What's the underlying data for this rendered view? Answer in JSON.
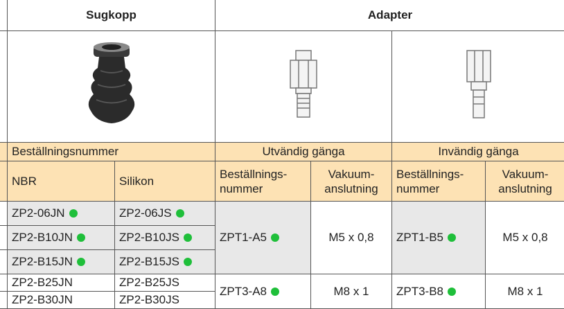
{
  "header": {
    "sugkopp": "Sugkopp",
    "adapter": "Adapter"
  },
  "subheader": {
    "order_number": "Beställningsnummer",
    "external": "Utvändig gänga",
    "internal": "Invändig gänga"
  },
  "columns": {
    "nbr": "NBR",
    "silikon": "Silikon",
    "order_a": "Beställnings-\nnummer",
    "vacuum_a": "Vakuum-\nanslutning",
    "order_b": "Beställnings-\nnummer",
    "vacuum_b": "Vakuum-\nanslutning"
  },
  "sugkopp_rows": [
    [
      "ZP2-06JN",
      "ZP2-06JS"
    ],
    [
      "ZP2-B10JN",
      "ZP2-B10JS"
    ],
    [
      "ZP2-B15JN",
      "ZP2-B15JS"
    ],
    [
      "ZP2-B25JN",
      "ZP2-B25JS"
    ],
    [
      "ZP2-B30JN",
      "ZP2-B30JS"
    ]
  ],
  "adapter_rows": [
    [
      "ZPT1-A5",
      "M5 x 0,8",
      "ZPT1-B5",
      "M5 x 0,8"
    ],
    [
      "ZPT3-A8",
      "M8 x 1",
      "ZPT3-B8",
      "M8 x 1"
    ]
  ]
}
